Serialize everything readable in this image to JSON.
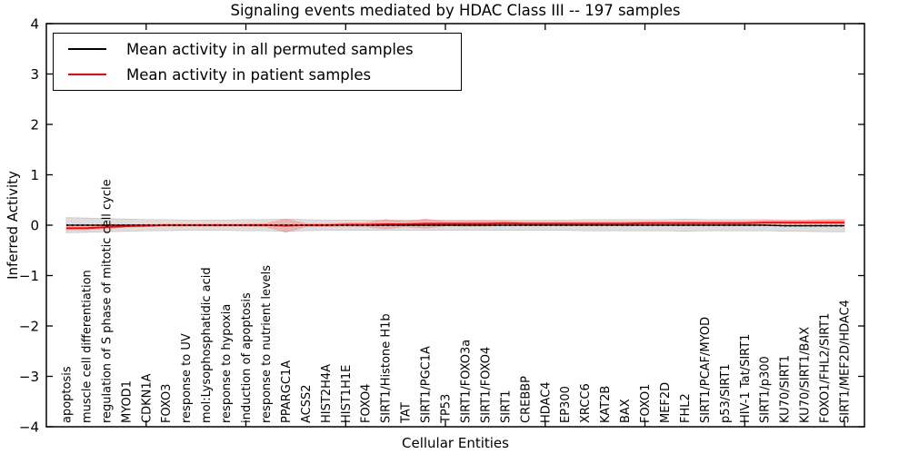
{
  "chart_data": {
    "type": "line",
    "title": "Signaling events mediated by HDAC Class III -- 197 samples",
    "xlabel": "Cellular Entities",
    "ylabel": "Inferred Activity",
    "ylim": [
      -4,
      4
    ],
    "yticks": [
      -4,
      -3,
      -2,
      -1,
      0,
      1,
      2,
      3,
      4
    ],
    "xticks": [
      5,
      10,
      15,
      20,
      25,
      30,
      35,
      40
    ],
    "grid": false,
    "legend_position": "upper left",
    "categories": [
      "apoptosis",
      "muscle cell differentiation",
      "regulation of S phase of mitotic cell cycle",
      "MYOD1",
      "CDKN1A",
      "FOXO3",
      "response to UV",
      "mol:Lysophosphatidic acid",
      "response to hypoxia",
      "induction of apoptosis",
      "response to nutrient levels",
      "PPARGC1A",
      "ACSS2",
      "HIST2H4A",
      "HIST1H1E",
      "FOXO4",
      "SIRT1/Histone H1b",
      "TAT",
      "SIRT1/PGC1A",
      "TP53",
      "SIRT1/FOXO3a",
      "SIRT1/FOXO4",
      "SIRT1",
      "CREBBP",
      "HDAC4",
      "EP300",
      "XRCC6",
      "KAT2B",
      "BAX",
      "FOXO1",
      "MEF2D",
      "FHL2",
      "SIRT1/PCAF/MYOD",
      "p53/SIRT1",
      "HIV-1 Tat/SIRT1",
      "SIRT1/p300",
      "KU70/SIRT1",
      "KU70/SIRT1/BAX",
      "FOXO1/FHL2/SIRT1",
      "SIRT1/MEF2D/HDAC4"
    ],
    "series": [
      {
        "name": "Mean activity in all permuted samples",
        "color": "#000000",
        "band_color": "#000000",
        "band_opacity": 0.13,
        "values": [
          0.0,
          0.0,
          0.0,
          0.0,
          0.0,
          0.0,
          0.0,
          0.0,
          0.0,
          0.0,
          0.0,
          0.0,
          0.0,
          0.0,
          0.0,
          0.0,
          0.0,
          0.0,
          0.0,
          0.0,
          0.0,
          0.0,
          0.0,
          0.0,
          0.0,
          0.0,
          0.0,
          0.0,
          0.0,
          0.0,
          0.0,
          0.0,
          0.0,
          0.0,
          0.0,
          0.0,
          -0.01,
          -0.01,
          -0.01,
          -0.01
        ],
        "band_halfwidth": [
          0.15,
          0.14,
          0.13,
          0.12,
          0.11,
          0.11,
          0.1,
          0.1,
          0.1,
          0.11,
          0.11,
          0.12,
          0.11,
          0.1,
          0.1,
          0.1,
          0.1,
          0.1,
          0.1,
          0.1,
          0.1,
          0.1,
          0.1,
          0.1,
          0.1,
          0.1,
          0.11,
          0.11,
          0.11,
          0.11,
          0.11,
          0.12,
          0.11,
          0.11,
          0.11,
          0.11,
          0.11,
          0.11,
          0.12,
          0.12
        ]
      },
      {
        "name": "Mean activity in patient samples",
        "color": "#ff0000",
        "band_color": "#ff0000",
        "band_opacity": 0.18,
        "values": [
          -0.06,
          -0.06,
          -0.04,
          -0.02,
          -0.01,
          0.0,
          0.0,
          0.0,
          0.0,
          0.0,
          0.0,
          -0.01,
          0.0,
          0.0,
          0.01,
          0.01,
          0.02,
          0.02,
          0.03,
          0.03,
          0.03,
          0.03,
          0.04,
          0.03,
          0.03,
          0.03,
          0.03,
          0.03,
          0.03,
          0.04,
          0.04,
          0.04,
          0.04,
          0.04,
          0.04,
          0.05,
          0.05,
          0.05,
          0.05,
          0.05
        ],
        "band_halfwidth": [
          0.03,
          0.03,
          0.03,
          0.02,
          0.02,
          0.02,
          0.02,
          0.02,
          0.02,
          0.02,
          0.03,
          0.13,
          0.03,
          0.03,
          0.03,
          0.04,
          0.09,
          0.05,
          0.09,
          0.04,
          0.05,
          0.05,
          0.04,
          0.03,
          0.03,
          0.03,
          0.03,
          0.03,
          0.03,
          0.03,
          0.03,
          0.03,
          0.03,
          0.03,
          0.03,
          0.04,
          0.04,
          0.04,
          0.05,
          0.05
        ]
      }
    ]
  }
}
